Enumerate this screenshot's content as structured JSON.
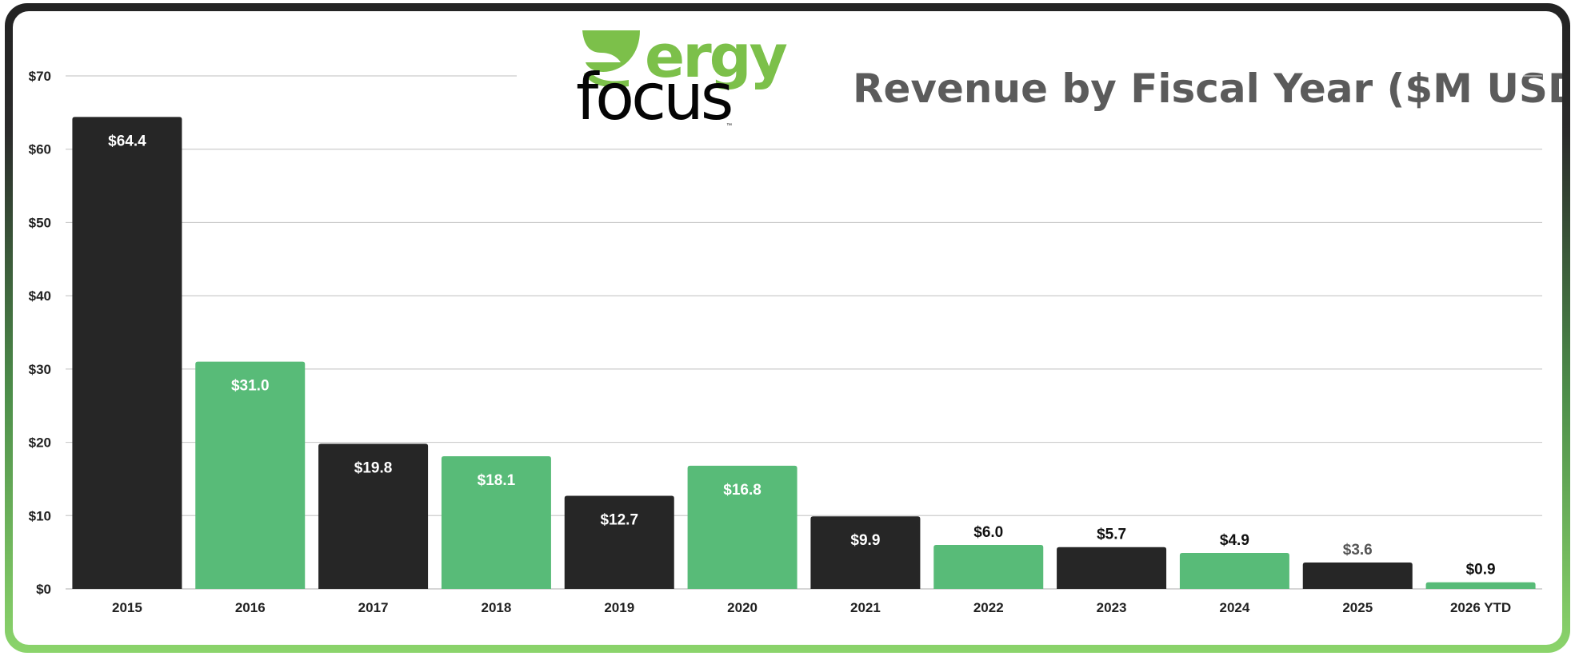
{
  "chart_data": {
    "type": "bar",
    "title": "Revenue by Fiscal Year ($M USD)",
    "xlabel": "",
    "ylabel": "",
    "ylim": [
      0,
      70
    ],
    "yticks": [
      "$0",
      "$10",
      "$20",
      "$30",
      "$40",
      "$50",
      "$60",
      "$70"
    ],
    "categories": [
      "2015",
      "2016",
      "2017",
      "2018",
      "2019",
      "2020",
      "2021",
      "2022",
      "2023",
      "2024",
      "2025",
      "2026 YTD"
    ],
    "values": [
      64.4,
      31.0,
      19.8,
      18.1,
      12.7,
      16.8,
      9.9,
      6.0,
      5.7,
      4.9,
      3.6,
      0.9
    ],
    "data_labels": [
      "$64.4",
      "$31.0",
      "$19.8",
      "$18.1",
      "$12.7",
      "$16.8",
      "$9.9",
      "$6.0",
      "$5.7",
      "$4.9",
      "$3.6",
      "$0.9"
    ],
    "grid": true,
    "legend": "none",
    "colors": {
      "dark": "#262626",
      "green": "#58bb78",
      "grid": "#cccccc",
      "title": "#5b5b5b"
    }
  },
  "logo": {
    "line1": "ergy",
    "line2": "focus",
    "tm": "™",
    "accent": "#7cc04a"
  }
}
